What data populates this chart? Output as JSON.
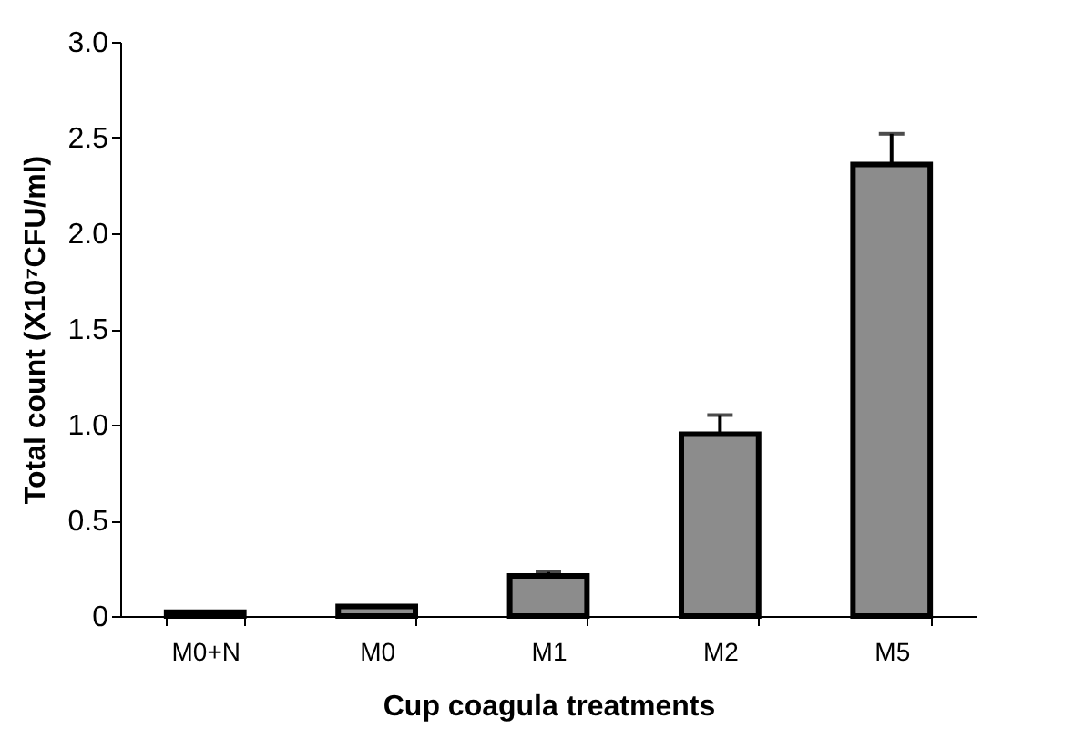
{
  "chart_data": {
    "type": "bar",
    "xlabel": "Cup coagula treatments",
    "ylabel": "Total count (X10⁷CFU/ml)",
    "categories": [
      "M0+N",
      "M0",
      "M1",
      "M2",
      "M5"
    ],
    "values": [
      0.02,
      0.05,
      0.21,
      0.95,
      2.36
    ],
    "errors": [
      null,
      null,
      [
        0.21,
        0.23
      ],
      [
        0.95,
        1.05
      ],
      [
        2.36,
        2.52
      ]
    ],
    "color": "#8c8c8c",
    "ylim": [
      0,
      3
    ],
    "yticks": [
      0,
      {
        "value": 0.5,
        "label": "0.5"
      },
      {
        "value": 1,
        "label": "1.0"
      },
      {
        "value": 1.5,
        "label": "1.5"
      },
      {
        "value": 2,
        "label": "2.0"
      },
      {
        "value": 2.5,
        "label": "2.5"
      },
      {
        "value": 3,
        "label": "3.0"
      }
    ],
    "grid": false
  }
}
